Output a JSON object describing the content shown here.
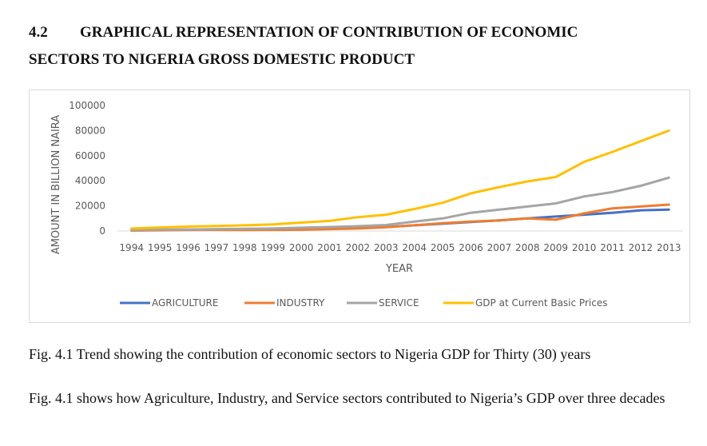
{
  "heading": {
    "number": "4.2",
    "title_line1": "GRAPHICAL REPRESENTATION OF CONTRIBUTION OF ECONOMIC",
    "title_line2": "SECTORS TO NIGERIA GROSS DOMESTIC PRODUCT"
  },
  "caption": "Fig. 4.1 Trend showing the contribution of economic sectors to Nigeria GDP for Thirty (30) years",
  "description": "Fig. 4.1 shows how Agriculture, Industry, and Service sectors contributed to Nigeria’s GDP over three decades",
  "chart_data": {
    "type": "line",
    "title": "",
    "xlabel": "YEAR",
    "ylabel": "AMOUNT IN BILLION NAIRA",
    "ylim": [
      0,
      100000
    ],
    "yticks": [
      0,
      20000,
      40000,
      60000,
      80000,
      100000
    ],
    "ytick_labels": [
      "0",
      "20000",
      "40000",
      "60000",
      "80000",
      "100000"
    ],
    "grid": false,
    "legend_position": "bottom",
    "categories": [
      "1994",
      "1995",
      "1996",
      "1997",
      "1998",
      "1999",
      "2000",
      "2001",
      "2002",
      "2003",
      "2004",
      "2005",
      "2006",
      "2007",
      "2008",
      "2009",
      "2010",
      "2011",
      "2012",
      "2013"
    ],
    "series": [
      {
        "name": "AGRICULTURE",
        "color": "#4472c4",
        "values": [
          500,
          800,
          1000,
          1100,
          1200,
          1300,
          1600,
          2000,
          2500,
          3200,
          4500,
          5800,
          7200,
          8500,
          10000,
          11500,
          13000,
          14500,
          16500,
          17000
        ]
      },
      {
        "name": "INDUSTRY",
        "color": "#ed7d31",
        "values": [
          300,
          600,
          800,
          900,
          800,
          900,
          1000,
          1500,
          2000,
          3000,
          4500,
          6200,
          7500,
          8500,
          10000,
          9000,
          14000,
          18000,
          19500,
          21000
        ]
      },
      {
        "name": "SERVICE",
        "color": "#a5a5a5",
        "values": [
          800,
          1000,
          1200,
          1500,
          1800,
          2000,
          2600,
          3200,
          3800,
          4800,
          7500,
          10000,
          14500,
          17000,
          19500,
          22000,
          27500,
          31000,
          36000,
          42500
        ]
      },
      {
        "name": "GDP at Current Basic Prices",
        "color": "#ffc000",
        "values": [
          2000,
          2800,
          3500,
          4000,
          4500,
          5300,
          6700,
          8000,
          11000,
          13000,
          17500,
          22500,
          30000,
          35000,
          39500,
          43000,
          55000,
          63000,
          71500,
          80000
        ]
      }
    ]
  }
}
